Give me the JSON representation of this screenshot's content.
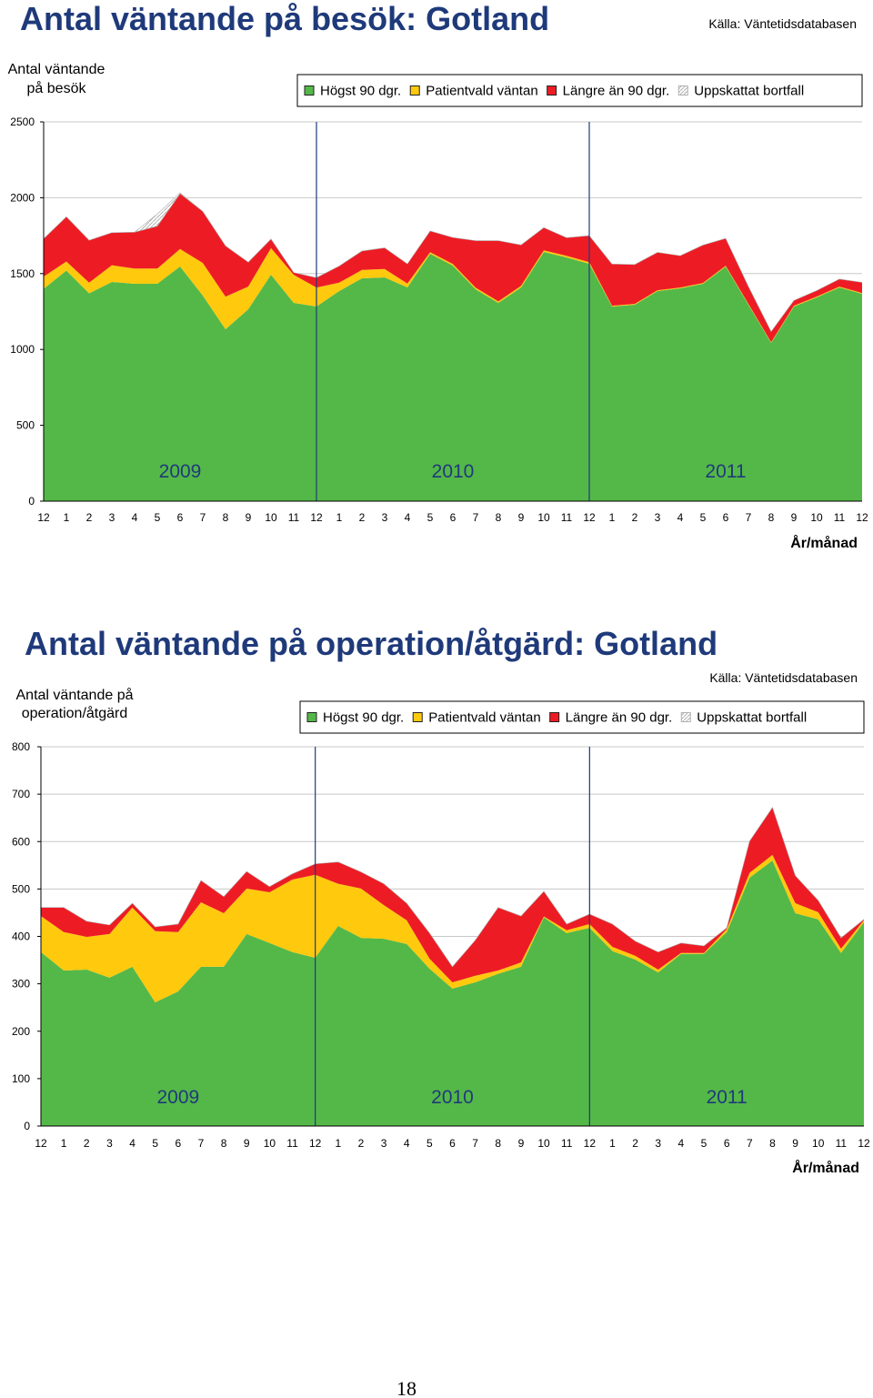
{
  "chart_data": [
    {
      "type": "area",
      "stacked": true,
      "title": "Antal väntande på besök: Gotland",
      "source": "Källa: Väntetidsdatabasen",
      "y_label": [
        "Antal väntande",
        "på besök"
      ],
      "x_label": "År/månad",
      "annotations": [
        "2009",
        "2010",
        "2011"
      ],
      "categories": [
        12,
        1,
        2,
        3,
        4,
        5,
        6,
        7,
        8,
        9,
        10,
        11,
        12,
        1,
        2,
        3,
        4,
        5,
        6,
        7,
        8,
        9,
        10,
        11,
        12,
        1,
        2,
        3,
        4,
        5,
        6,
        7,
        8,
        9,
        10,
        11,
        12
      ],
      "series": [
        {
          "name": "Högst 90 dgr.",
          "color": "#54B848",
          "values": [
            1400,
            1520,
            1370,
            1445,
            1433,
            1433,
            1547,
            1355,
            1133,
            1265,
            1493,
            1307,
            1283,
            1385,
            1469,
            1475,
            1409,
            1631,
            1553,
            1397,
            1307,
            1409,
            1643,
            1607,
            1565,
            1283,
            1295,
            1385,
            1403,
            1433,
            1547,
            1295,
            1043,
            1283,
            1343,
            1409,
            1367
          ]
        },
        {
          "name": "Patientvald väntan",
          "color": "#FFC90E",
          "values": [
            80,
            60,
            70,
            110,
            100,
            100,
            115,
            215,
            215,
            150,
            175,
            185,
            125,
            55,
            55,
            55,
            25,
            10,
            10,
            10,
            10,
            10,
            10,
            10,
            10,
            5,
            5,
            5,
            5,
            5,
            5,
            5,
            5,
            5,
            5,
            5,
            5
          ]
        },
        {
          "name": "Längre än 90 dgr.",
          "color": "#ED1C24",
          "values": [
            250,
            295,
            280,
            215,
            240,
            280,
            365,
            340,
            335,
            160,
            60,
            15,
            65,
            110,
            125,
            140,
            130,
            140,
            175,
            310,
            400,
            270,
            150,
            120,
            175,
            275,
            260,
            250,
            210,
            250,
            180,
            115,
            70,
            35,
            40,
            50,
            70
          ]
        },
        {
          "name": "Uppskattat bortfall",
          "color": "#b0b0b0",
          "hatch": true,
          "values": [
            0,
            0,
            0,
            0,
            0,
            80,
            5,
            0,
            0,
            0,
            0,
            0,
            0,
            0,
            0,
            0,
            0,
            0,
            0,
            0,
            0,
            0,
            0,
            0,
            0,
            0,
            0,
            0,
            0,
            0,
            0,
            0,
            0,
            0,
            0,
            0,
            0
          ]
        }
      ],
      "ylim": [
        0,
        2500
      ],
      "yticks": [
        0,
        500,
        1000,
        1500,
        2000,
        2500
      ],
      "grid": true
    },
    {
      "type": "area",
      "stacked": true,
      "title": "Antal väntande på operation/åtgärd: Gotland",
      "source": "Källa: Väntetidsdatabasen",
      "y_label": [
        "Antal väntande på",
        "operation/åtgärd"
      ],
      "x_label": "År/månad",
      "annotations": [
        "2009",
        "2010",
        "2011"
      ],
      "categories": [
        12,
        1,
        2,
        3,
        4,
        5,
        6,
        7,
        8,
        9,
        10,
        11,
        12,
        1,
        2,
        3,
        4,
        5,
        6,
        7,
        8,
        9,
        10,
        11,
        12,
        1,
        2,
        3,
        4,
        5,
        6,
        7,
        8,
        9,
        10,
        11,
        12
      ],
      "series": [
        {
          "name": "Högst 90 dgr.",
          "color": "#54B848",
          "values": [
            367,
            328,
            330,
            313,
            336,
            261,
            284,
            336,
            336,
            405,
            386,
            367,
            355,
            422,
            397,
            395,
            384,
            332,
            290,
            303,
            321,
            336,
            440,
            407,
            418,
            369,
            351,
            324,
            363,
            363,
            409,
            524,
            560,
            449,
            436,
            365,
            430
          ]
        },
        {
          "name": "Patientvald väntan",
          "color": "#FFC90E",
          "values": [
            76,
            81,
            69,
            92,
            125,
            150,
            125,
            136,
            113,
            96,
            107,
            153,
            175,
            89,
            104,
            71,
            50,
            21,
            13,
            14,
            7,
            9,
            2,
            6,
            8,
            9,
            8,
            6,
            2,
            2,
            6,
            10,
            12,
            21,
            15,
            9,
            4
          ]
        },
        {
          "name": "Längre än 90 dgr.",
          "color": "#ED1C24",
          "values": [
            18,
            52,
            33,
            19,
            9,
            9,
            17,
            46,
            35,
            36,
            12,
            12,
            23,
            46,
            35,
            45,
            36,
            54,
            33,
            75,
            133,
            98,
            53,
            13,
            21,
            48,
            31,
            37,
            21,
            15,
            3,
            67,
            100,
            58,
            25,
            23,
            2
          ]
        },
        {
          "name": "Uppskattat bortfall",
          "color": "#b0b0b0",
          "hatch": true,
          "values": [
            0,
            0,
            0,
            0,
            0,
            0,
            0,
            0,
            0,
            0,
            0,
            0,
            0,
            0,
            0,
            0,
            0,
            0,
            0,
            0,
            0,
            0,
            0,
            0,
            0,
            0,
            0,
            0,
            0,
            0,
            0,
            0,
            0,
            0,
            0,
            0,
            0
          ]
        }
      ],
      "ylim": [
        0,
        800
      ],
      "yticks": [
        0,
        100,
        200,
        300,
        400,
        500,
        600,
        700,
        800
      ],
      "grid": true
    }
  ],
  "page": {
    "number": "18"
  }
}
